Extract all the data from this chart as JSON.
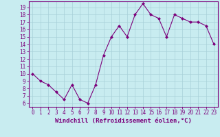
{
  "x": [
    0,
    1,
    2,
    3,
    4,
    5,
    6,
    7,
    8,
    9,
    10,
    11,
    12,
    13,
    14,
    15,
    16,
    17,
    18,
    19,
    20,
    21,
    22,
    23
  ],
  "y": [
    10.0,
    9.0,
    8.5,
    7.5,
    6.5,
    8.5,
    6.5,
    6.0,
    8.5,
    12.5,
    15.0,
    16.5,
    15.0,
    18.0,
    19.5,
    18.0,
    17.5,
    15.0,
    18.0,
    17.5,
    17.0,
    17.0,
    16.5,
    14.0
  ],
  "line_color": "#7b007b",
  "marker": "D",
  "marker_size": 2,
  "background_color": "#c8ecf0",
  "grid_color": "#a8d0d8",
  "xlabel": "Windchill (Refroidissement éolien,°C)",
  "xlim": [
    -0.5,
    23.5
  ],
  "ylim": [
    5.5,
    19.8
  ],
  "yticks": [
    6,
    7,
    8,
    9,
    10,
    11,
    12,
    13,
    14,
    15,
    16,
    17,
    18,
    19
  ],
  "xticks": [
    0,
    1,
    2,
    3,
    4,
    5,
    6,
    7,
    8,
    9,
    10,
    11,
    12,
    13,
    14,
    15,
    16,
    17,
    18,
    19,
    20,
    21,
    22,
    23
  ],
  "tick_label_color": "#7b007b",
  "tick_label_size": 5.5,
  "xlabel_size": 6.5,
  "xlabel_color": "#7b007b",
  "spine_color": "#7b007b"
}
